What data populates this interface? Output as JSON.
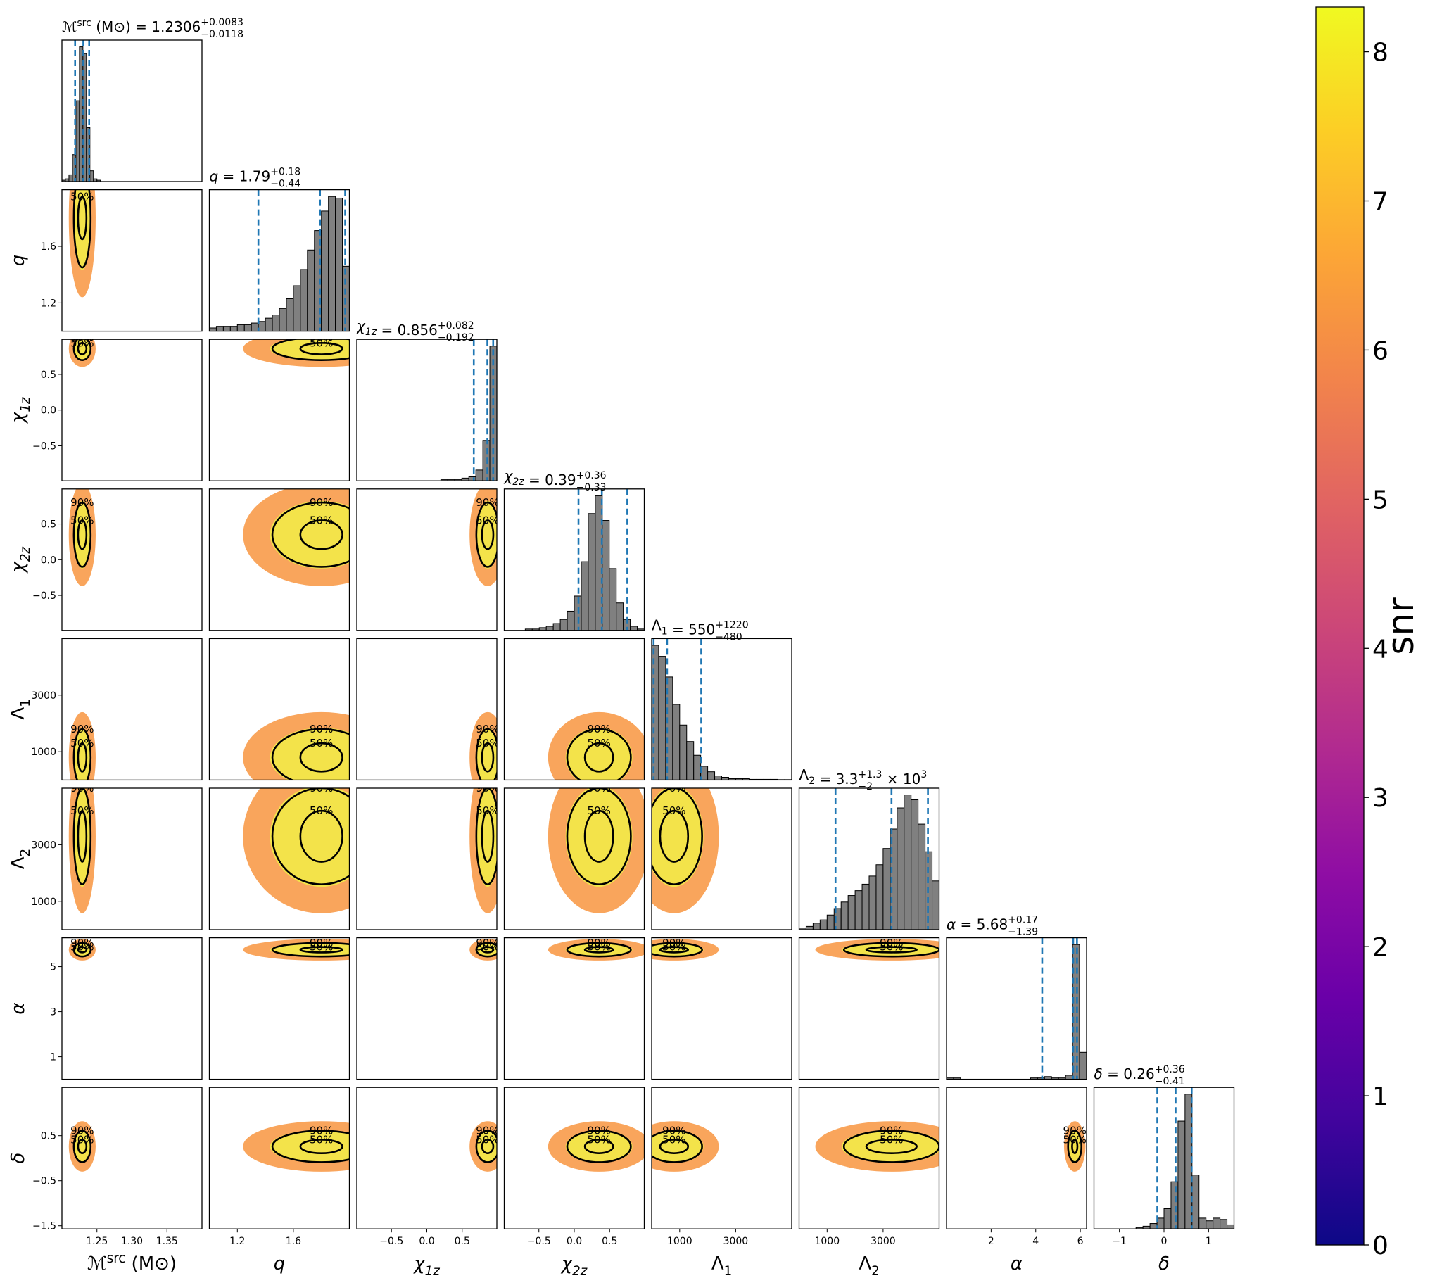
{
  "chart_data": {
    "type": "corner",
    "contour_labels": [
      "50%",
      "90%"
    ],
    "density_colors": [
      "#f89540",
      "#f3e34a"
    ],
    "hist_color": "#808080",
    "quantile_color": "#1f77b4",
    "params": [
      {
        "label": {
          "base": "ℳ",
          "sup": "src",
          "tail": " (M⊙)"
        },
        "title": {
          "text": " = 1.2306",
          "plus": "+0.0083",
          "minus": "−0.0118"
        },
        "lim": [
          1.2,
          1.4
        ],
        "xticks": [
          1.25,
          {
            "value": 1.3,
            "label": "1.30"
          },
          1.35
        ],
        "yticks": [],
        "bins": [
          1.2,
          1.205,
          1.21,
          1.215,
          1.22,
          1.225,
          1.23,
          1.235,
          1.24,
          1.245,
          1.25,
          1.255,
          1.26
        ],
        "counts": [
          1,
          2,
          5,
          20,
          60,
          100,
          95,
          40,
          8,
          2,
          1,
          0
        ],
        "quantiles": [
          1.2188,
          1.2306,
          1.2389
        ],
        "center": 1.229,
        "r50": 0.006,
        "r90": 0.012
      },
      {
        "label": {
          "base": "q",
          "italic": true
        },
        "title": {
          "text": " = 1.79",
          "plus": "+0.18",
          "minus": "−0.44"
        },
        "lim": [
          1.0,
          2.0
        ],
        "xticks": [
          1.2,
          1.6
        ],
        "yticks": [
          1.2,
          1.6
        ],
        "bins": [
          1.0,
          1.05,
          1.1,
          1.15,
          1.2,
          1.25,
          1.3,
          1.35,
          1.4,
          1.45,
          1.5,
          1.55,
          1.6,
          1.65,
          1.7,
          1.75,
          1.8,
          1.85,
          1.9,
          1.95,
          2.0
        ],
        "counts": [
          2,
          3,
          3,
          3,
          4,
          4,
          5,
          6,
          8,
          10,
          14,
          20,
          28,
          38,
          50,
          62,
          74,
          83,
          82,
          40
        ],
        "quantiles": [
          1.35,
          1.79,
          1.97
        ],
        "center": 1.8,
        "r50": 0.15,
        "r90": 0.35
      },
      {
        "label": {
          "base": "χ",
          "sub": "1z",
          "italic": true
        },
        "title": {
          "text": " = 0.856",
          "plus": "+0.082",
          "minus": "−0.192"
        },
        "lim": [
          -0.99,
          0.99
        ],
        "xticks": [
          {
            "value": -0.5,
            "label": "−0.5"
          },
          {
            "value": 0,
            "label": "0.0"
          },
          0.5
        ],
        "yticks": [
          {
            "value": -0.5,
            "label": "−0.5"
          },
          {
            "value": 0,
            "label": "0.0"
          },
          0.5
        ],
        "bins": [
          -0.99,
          -0.891,
          -0.792,
          -0.693,
          -0.594,
          -0.495,
          -0.396,
          -0.297,
          -0.198,
          -0.099,
          0,
          0.099,
          0.198,
          0.297,
          0.396,
          0.495,
          0.594,
          0.693,
          0.792,
          0.891,
          0.99
        ],
        "counts": [
          0,
          0,
          0,
          0,
          0,
          0,
          0,
          0,
          0,
          0,
          0,
          0,
          1,
          1,
          1,
          2,
          3,
          8,
          30,
          100
        ],
        "quantiles": [
          0.664,
          0.856,
          0.938
        ],
        "center": 0.86,
        "r50": 0.08,
        "r90": 0.16
      },
      {
        "label": {
          "base": "χ",
          "sub": "2z",
          "italic": true
        },
        "title": {
          "text": " = 0.39",
          "plus": "+0.36",
          "minus": "−0.33"
        },
        "lim": [
          -0.99,
          0.99
        ],
        "xticks": [
          {
            "value": -0.5,
            "label": "−0.5"
          },
          {
            "value": 0,
            "label": "0.0"
          },
          0.5
        ],
        "yticks": [
          {
            "value": -0.5,
            "label": "−0.5"
          },
          {
            "value": 0,
            "label": "0.0"
          },
          0.5
        ],
        "bins": [
          -0.99,
          -0.891,
          -0.792,
          -0.693,
          -0.594,
          -0.495,
          -0.396,
          -0.297,
          -0.198,
          -0.099,
          0,
          0.099,
          0.198,
          0.297,
          0.396,
          0.495,
          0.594,
          0.693,
          0.792,
          0.891,
          0.99
        ],
        "counts": [
          0,
          0,
          0,
          1,
          1,
          2,
          3,
          5,
          8,
          14,
          25,
          50,
          85,
          98,
          80,
          45,
          20,
          8,
          3,
          1
        ],
        "quantiles": [
          0.06,
          0.39,
          0.75
        ],
        "center": 0.35,
        "r50": 0.2,
        "r90": 0.45
      },
      {
        "label": {
          "base": "Λ",
          "sub": "1"
        },
        "title": {
          "text": " = 550",
          "plus": "+1220",
          "minus": "−480"
        },
        "lim": [
          0,
          5000
        ],
        "xticks": [
          1000,
          3000
        ],
        "yticks": [
          1000,
          3000
        ],
        "bins": [
          0,
          250,
          500,
          750,
          1000,
          1250,
          1500,
          1750,
          2000,
          2250,
          2500,
          2750,
          3000,
          3250,
          3500,
          3750,
          4000,
          4250,
          4500,
          4750,
          5000
        ],
        "counts": [
          98,
          90,
          75,
          55,
          40,
          28,
          18,
          10,
          6,
          3,
          2,
          1,
          1,
          1,
          0.5,
          0.5,
          0.5,
          0.5,
          0.3,
          0.3
        ],
        "quantiles": [
          70,
          550,
          1770
        ],
        "center": 800,
        "r50": 500,
        "r90": 1000
      },
      {
        "label": {
          "base": "Λ",
          "sub": "2"
        },
        "title": {
          "text": " = 3.3",
          "plus": "+1.3",
          "minus": "−2",
          "tail": " × 10",
          "tail_sup": "3"
        },
        "lim": [
          0,
          5000
        ],
        "xticks": [
          1000,
          3000
        ],
        "yticks": [
          1000,
          3000
        ],
        "bins": [
          0,
          250,
          500,
          750,
          1000,
          1250,
          1500,
          1750,
          2000,
          2250,
          2500,
          2750,
          3000,
          3250,
          3500,
          3750,
          4000,
          4250,
          4500,
          4750,
          5000
        ],
        "counts": [
          1,
          2,
          4,
          6,
          9,
          13,
          17,
          21,
          24,
          28,
          33,
          40,
          50,
          62,
          75,
          83,
          80,
          65,
          48,
          30
        ],
        "quantiles": [
          1300,
          3300,
          4600
        ],
        "center": 3300,
        "r50": 900,
        "r90": 1700
      },
      {
        "label": {
          "base": "α",
          "italic": true
        },
        "title": {
          "text": " = 5.68",
          "plus": "+0.17",
          "minus": "−1.39"
        },
        "lim": [
          0,
          6.28
        ],
        "xticks": [
          2,
          4,
          6
        ],
        "yticks": [
          1,
          3,
          5
        ],
        "bins": [
          0,
          0.314,
          0.628,
          0.942,
          1.256,
          1.57,
          1.884,
          2.198,
          2.512,
          2.826,
          3.14,
          3.454,
          3.768,
          4.082,
          4.396,
          4.71,
          5.024,
          5.338,
          5.652,
          5.966,
          6.28
        ],
        "counts": [
          1,
          1,
          0,
          0,
          0,
          0,
          0,
          0,
          0,
          0,
          0,
          0,
          1,
          1,
          2,
          1,
          1,
          3,
          100,
          20
        ],
        "quantiles": [
          4.29,
          5.68,
          5.85
        ],
        "center": 5.75,
        "r50": 0.12,
        "r90": 0.3
      },
      {
        "label": {
          "base": "δ",
          "italic": true
        },
        "title": {
          "text": " = 0.26",
          "plus": "+0.36",
          "minus": "−0.41"
        },
        "lim": [
          -1.57,
          1.57
        ],
        "xticks": [
          {
            "value": -1,
            "label": "−1"
          },
          0,
          1
        ],
        "yticks": [
          {
            "value": -1.5,
            "label": "−1.5"
          },
          {
            "value": -0.5,
            "label": "−0.5"
          },
          0.5
        ],
        "bins": [
          -1.57,
          -1.413,
          -1.256,
          -1.099,
          -0.942,
          -0.785,
          -0.628,
          -0.471,
          -0.314,
          -0.157,
          0,
          0.157,
          0.314,
          0.471,
          0.628,
          0.785,
          0.942,
          1.099,
          1.256,
          1.413,
          1.57
        ],
        "counts": [
          0,
          0,
          0,
          0,
          0,
          0,
          1,
          2,
          4,
          8,
          15,
          35,
          80,
          100,
          40,
          8,
          6,
          8,
          7,
          3
        ],
        "quantiles": [
          -0.15,
          0.26,
          0.62
        ],
        "center": 0.26,
        "r50": 0.15,
        "r90": 0.35
      }
    ],
    "colorbar": {
      "label": "snr",
      "lim": [
        0,
        8.3
      ],
      "ticks": [
        0,
        1,
        2,
        3,
        4,
        5,
        6,
        7,
        8
      ]
    }
  }
}
